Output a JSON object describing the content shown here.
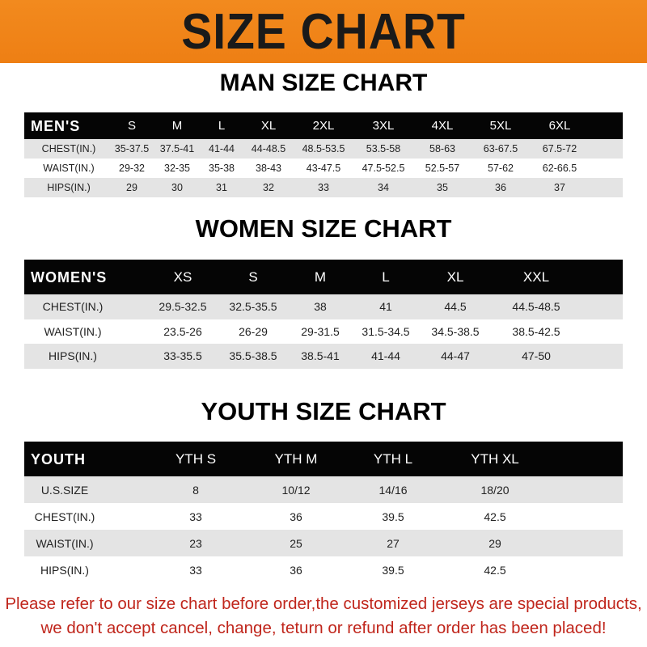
{
  "banner": {
    "title": "SIZE CHART",
    "color": "#f08a1c"
  },
  "men": {
    "title": "MAN SIZE CHART",
    "header": [
      "MEN'S",
      "S",
      "M",
      "L",
      "XL",
      "2XL",
      "3XL",
      "4XL",
      "5XL",
      "6XL"
    ],
    "rows": [
      [
        "CHEST(IN.)",
        "35-37.5",
        "37.5-41",
        "41-44",
        "44-48.5",
        "48.5-53.5",
        "53.5-58",
        "58-63",
        "63-67.5",
        "67.5-72"
      ],
      [
        "WAIST(IN.)",
        "29-32",
        "32-35",
        "35-38",
        "38-43",
        "43-47.5",
        "47.5-52.5",
        "52.5-57",
        "57-62",
        "62-66.5"
      ],
      [
        "HIPS(IN.)",
        "29",
        "30",
        "31",
        "32",
        "33",
        "34",
        "35",
        "36",
        "37"
      ]
    ]
  },
  "women": {
    "title": "WOMEN SIZE CHART",
    "header": [
      "WOMEN'S",
      "XS",
      "S",
      "M",
      "L",
      "XL",
      "XXL"
    ],
    "rows": [
      [
        "CHEST(IN.)",
        "29.5-32.5",
        "32.5-35.5",
        "38",
        "41",
        "44.5",
        "44.5-48.5"
      ],
      [
        "WAIST(IN.)",
        "23.5-26",
        "26-29",
        "29-31.5",
        "31.5-34.5",
        "34.5-38.5",
        "38.5-42.5"
      ],
      [
        "HIPS(IN.)",
        "33-35.5",
        "35.5-38.5",
        "38.5-41",
        "41-44",
        "44-47",
        "47-50"
      ]
    ]
  },
  "youth": {
    "title": "YOUTH SIZE CHART",
    "header": [
      "YOUTH",
      "YTH S",
      "YTH M",
      "YTH L",
      "YTH XL"
    ],
    "rows": [
      [
        "U.S.SIZE",
        "8",
        "10/12",
        "14/16",
        "18/20"
      ],
      [
        "CHEST(IN.)",
        "33",
        "36",
        "39.5",
        "42.5"
      ],
      [
        "WAIST(IN.)",
        "23",
        "25",
        "27",
        "29"
      ],
      [
        "HIPS(IN.)",
        "33",
        "36",
        "39.5",
        "42.5"
      ]
    ]
  },
  "notice": {
    "line1": "Please refer to our size chart before order,the customized jerseys are special products,",
    "line2": "we don't accept cancel, change, teturn or refund after order has been placed!",
    "color": "#c0261c"
  }
}
